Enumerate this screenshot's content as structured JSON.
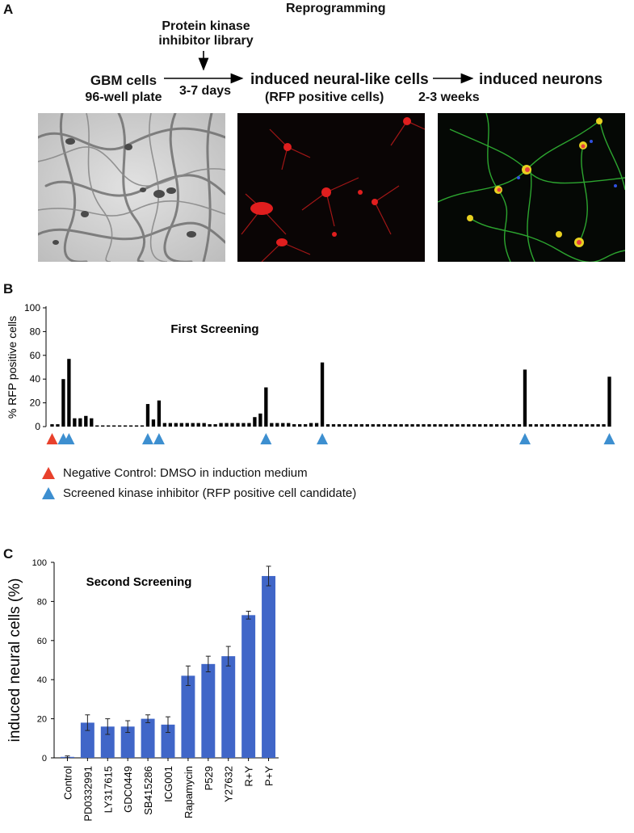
{
  "panelA": {
    "letter": "A",
    "title": "Reprogramming",
    "library_line1": "Protein kinase",
    "library_line2": "inhibitor library",
    "start_line1": "GBM cells",
    "start_line2": "96-well plate",
    "step1_time": "3-7 days",
    "middle_line1": "induced neural-like cells",
    "middle_line2": "(RFP positive cells)",
    "end_label": "induced neurons",
    "step2_time": "2-3 weeks",
    "images": [
      "brightfield-micrograph",
      "rfp-fluorescence-micrograph",
      "neuron-immunostain-micrograph"
    ]
  },
  "panelB": {
    "letter": "B",
    "legend_negative": "Negative Control: DMSO in induction medium",
    "legend_screened": "Screened kinase inhibitor (RFP positive cell candidate)",
    "colors": {
      "negative": "#e8412c",
      "screened": "#3d8fd0",
      "bar": "#000000"
    }
  },
  "panelC": {
    "letter": "C",
    "colors": {
      "bar": "#4066c8"
    }
  },
  "chart_data": [
    {
      "type": "bar",
      "title": "First Screening",
      "ylabel": "% RFP positive cells",
      "ylim": [
        0,
        100
      ],
      "yticks": [
        "0",
        "20",
        "40",
        "60",
        "80",
        "100"
      ],
      "values": [
        2,
        2,
        40,
        57,
        7,
        7,
        9,
        7,
        1,
        1,
        1,
        1,
        1,
        1,
        1,
        1,
        1,
        19,
        6,
        22,
        3,
        3,
        3,
        3,
        3,
        3,
        3,
        3,
        2,
        2,
        3,
        3,
        3,
        3,
        3,
        3,
        8,
        11,
        33,
        3,
        3,
        3,
        3,
        2,
        2,
        2,
        3,
        3,
        54,
        2,
        2,
        2,
        2,
        2,
        2,
        2,
        2,
        2,
        2,
        2,
        2,
        2,
        2,
        2,
        2,
        2,
        2,
        2,
        2,
        2,
        2,
        2,
        2,
        2,
        2,
        2,
        2,
        2,
        2,
        2,
        2,
        2,
        2,
        2,
        48,
        2,
        2,
        2,
        2,
        2,
        2,
        2,
        2,
        2,
        2,
        2,
        2,
        2,
        2,
        42
      ],
      "negative_control_index": 0,
      "screened_indices": [
        2,
        3,
        17,
        19,
        38,
        48,
        84,
        99
      ]
    },
    {
      "type": "bar",
      "title": "Second Screening",
      "ylabel": "induced neural cells (%)",
      "ylim": [
        0,
        100
      ],
      "yticks": [
        "0",
        "20",
        "40",
        "60",
        "80",
        "100"
      ],
      "categories": [
        "Control",
        "PD0332991",
        "LY317615",
        "GDC0449",
        "SB415286",
        "ICG001",
        "Rapamycin",
        "P529",
        "Y27632",
        "R+Y",
        "P+Y"
      ],
      "values": [
        0.5,
        18,
        16,
        16,
        20,
        17,
        42,
        48,
        52,
        73,
        93
      ],
      "errors": [
        0.5,
        4,
        4,
        3,
        2,
        4,
        5,
        4,
        5,
        2,
        5
      ]
    }
  ]
}
